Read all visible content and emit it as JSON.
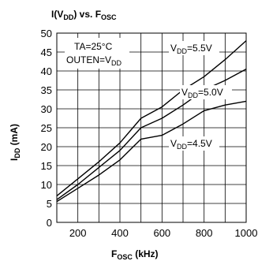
{
  "chart_data": {
    "type": "line",
    "title": {
      "base": "I(V",
      "sub": "DD",
      "suffix": ") vs. F",
      "sub2": "OSC"
    },
    "xlabel": {
      "main": "F",
      "sub": "OSC",
      "suffix": " (kHz)"
    },
    "ylabel": {
      "main": "I",
      "sub": "DD",
      "suffix": " (mA)"
    },
    "xlim": [
      100,
      1000
    ],
    "ylim": [
      0,
      50
    ],
    "x_ticks": [
      200,
      400,
      600,
      800,
      1000
    ],
    "y_ticks": [
      0,
      5,
      10,
      15,
      20,
      25,
      30,
      35,
      40,
      45,
      50
    ],
    "grid": true,
    "conditions": {
      "ta": "TA=25°C",
      "outen": {
        "main": "OUTEN=V",
        "sub": "DD"
      }
    },
    "series": [
      {
        "name": {
          "main": "V",
          "sub": "DD",
          "suffix": "=5.5V"
        },
        "x": [
          100,
          200,
          300,
          400,
          500,
          600,
          700,
          800,
          900,
          1000
        ],
        "y": [
          7,
          11.5,
          16,
          21,
          27.5,
          30.5,
          35,
          38.5,
          43,
          48
        ]
      },
      {
        "name": {
          "main": "V",
          "sub": "DD",
          "suffix": "=5.0V"
        },
        "x": [
          100,
          200,
          300,
          400,
          500,
          600,
          700,
          800,
          900,
          1000
        ],
        "y": [
          6,
          10,
          14.5,
          19,
          25,
          27.5,
          31,
          35,
          37.5,
          40.5
        ]
      },
      {
        "name": {
          "main": "V",
          "sub": "DD",
          "suffix": "=4.5V"
        },
        "x": [
          100,
          200,
          300,
          400,
          500,
          600,
          700,
          800,
          900,
          1000
        ],
        "y": [
          5.5,
          9,
          12.5,
          16.5,
          22,
          23,
          26,
          29.5,
          31,
          32
        ]
      }
    ]
  }
}
